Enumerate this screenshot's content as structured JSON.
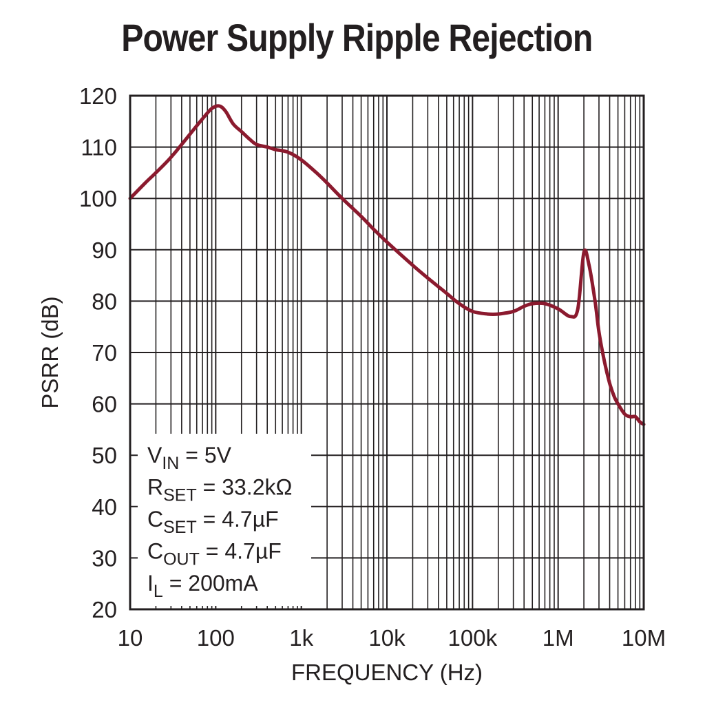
{
  "chart_data": {
    "type": "line",
    "title": "Power Supply Ripple Rejection",
    "xlabel": "FREQUENCY (Hz)",
    "ylabel": "PSRR (dB)",
    "xscale": "log",
    "xlim": [
      10,
      10000000
    ],
    "ylim": [
      20,
      120
    ],
    "grid": true,
    "x_tick_values": [
      10,
      100,
      1000,
      10000,
      100000,
      1000000,
      10000000
    ],
    "x_tick_labels": [
      "10",
      "100",
      "1k",
      "10k",
      "100k",
      "1M",
      "10M"
    ],
    "y_tick_values": [
      20,
      30,
      40,
      50,
      60,
      70,
      80,
      90,
      100,
      110,
      120
    ],
    "y_tick_labels": [
      "20",
      "30",
      "40",
      "50",
      "60",
      "70",
      "80",
      "90",
      "100",
      "110",
      "120"
    ],
    "series": [
      {
        "name": "PSRR",
        "color": "#8b1a2e",
        "x": [
          10,
          15,
          20,
          30,
          50,
          70,
          90,
          110,
          130,
          160,
          200,
          250,
          300,
          400,
          500,
          700,
          1000,
          1500,
          2000,
          3000,
          5000,
          7000,
          10000,
          20000,
          30000,
          50000,
          70000,
          100000,
          150000,
          200000,
          300000,
          400000,
          500000,
          700000,
          1000000,
          1400000,
          1700000,
          2000000,
          2300000,
          2700000,
          3000000,
          3500000,
          4000000,
          4500000,
          5000000,
          6000000,
          7000000,
          8000000,
          9000000,
          10000000
        ],
        "y": [
          100,
          103,
          105,
          108,
          112.5,
          115.5,
          117.5,
          118,
          117,
          114.5,
          113,
          111.5,
          110.5,
          110,
          109.5,
          109,
          107.5,
          105,
          103,
          100,
          96.5,
          94,
          91.5,
          87,
          84.5,
          81.5,
          79.5,
          78,
          77.5,
          77.5,
          78,
          79,
          79.5,
          79.5,
          78.5,
          77,
          78.5,
          89.5,
          87,
          80,
          74,
          68,
          64,
          61.5,
          60,
          58,
          57.5,
          57.5,
          56.5,
          56
        ]
      }
    ],
    "annotation": {
      "lines": [
        {
          "main": "V",
          "sub": "IN",
          "rest": " = 5V"
        },
        {
          "main": "R",
          "sub": "SET",
          "rest": " = 33.2kΩ"
        },
        {
          "main": "C",
          "sub": "SET",
          "rest": " = 4.7µF"
        },
        {
          "main": "C",
          "sub": "OUT",
          "rest": " = 4.7µF"
        },
        {
          "main": "I",
          "sub": "L",
          "rest": " = 200mA"
        }
      ]
    }
  }
}
